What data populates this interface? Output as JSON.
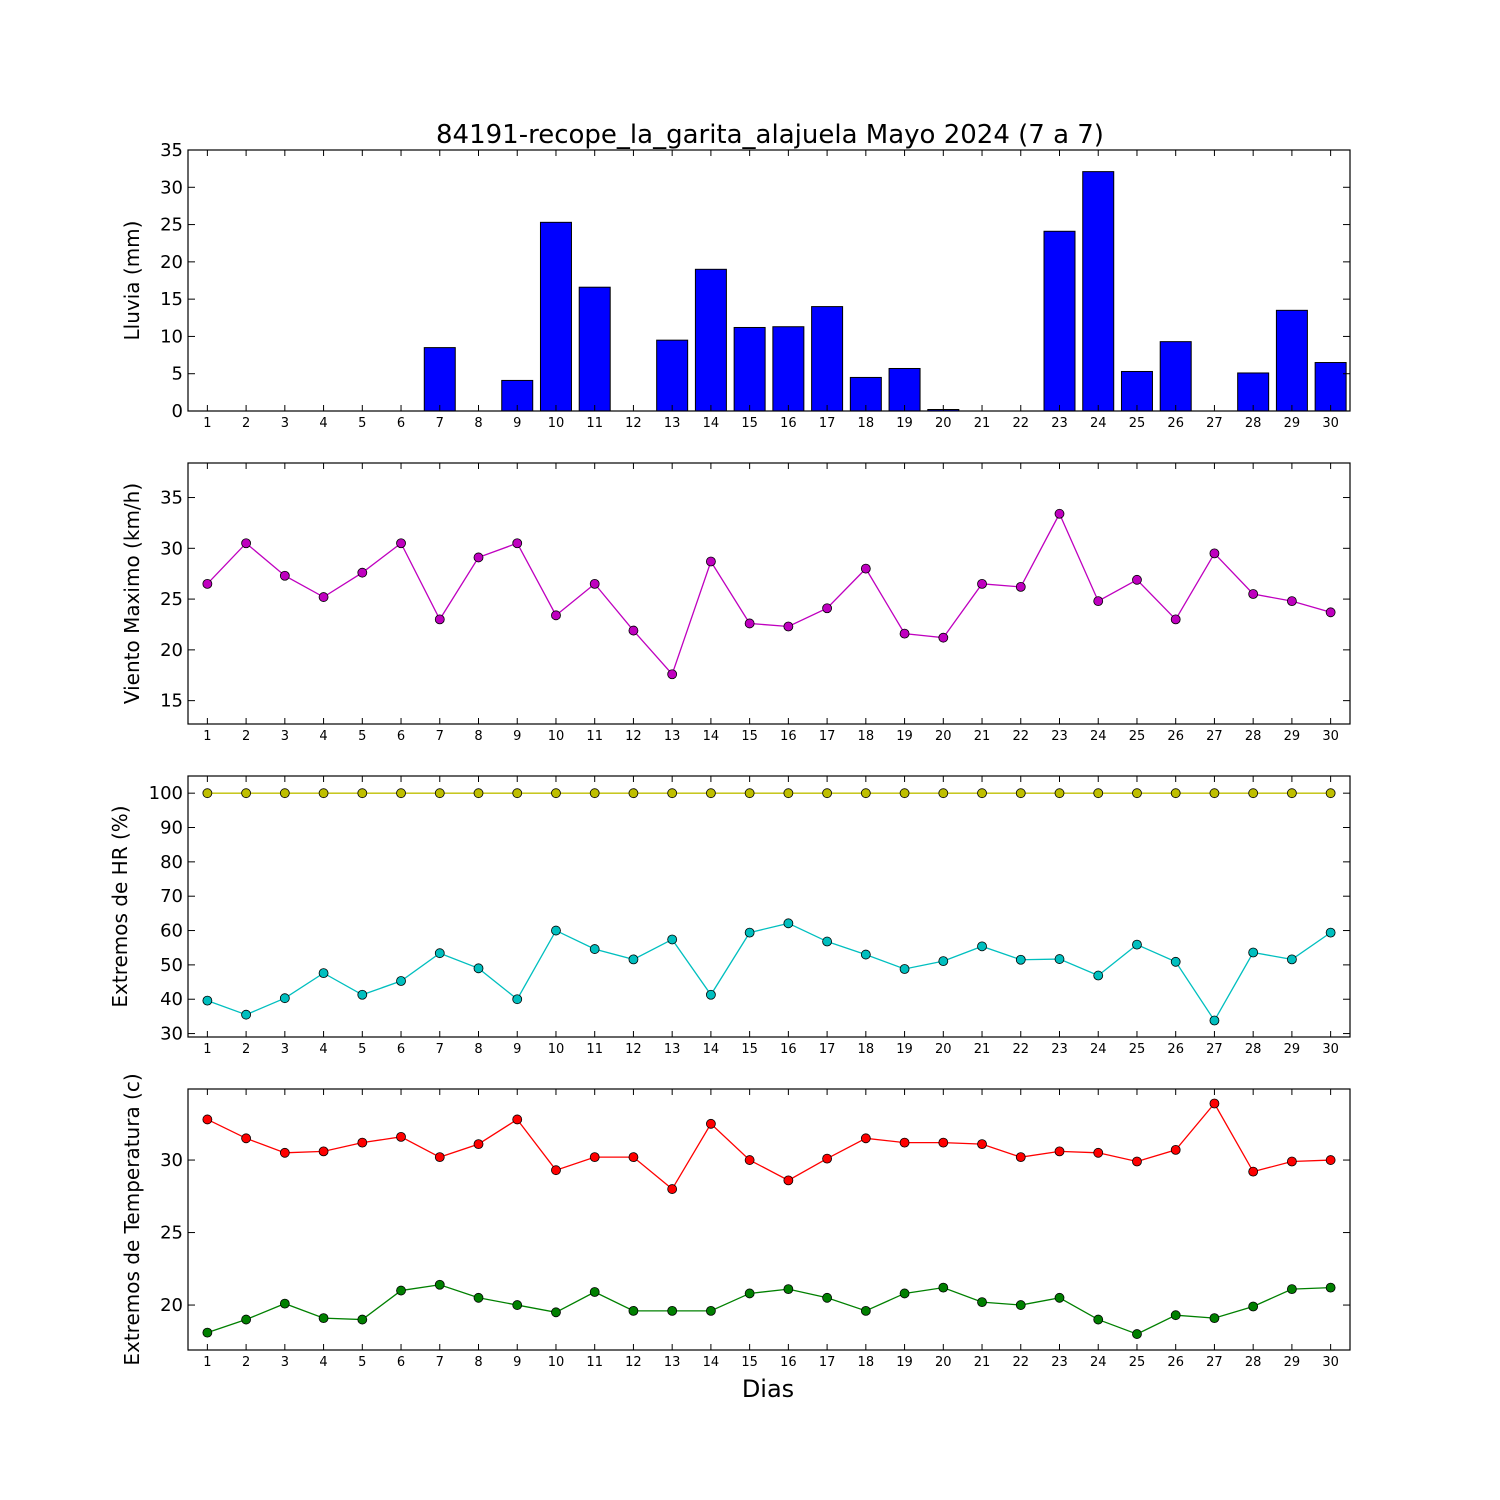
{
  "title": "84191-recope_la_garita_alajuela Mayo 2024  (7 a 7)",
  "xlabel": "Dias",
  "colors": {
    "rain_bar": "#0000ff",
    "wind": "#bf00bf",
    "hr_max": "#bfbf00",
    "hr_min": "#00bfbf",
    "temp_max": "#ff0000",
    "temp_min": "#008000"
  },
  "chart_data": [
    {
      "type": "bar",
      "ylabel": "Lluvia (mm)",
      "x": [
        1,
        2,
        3,
        4,
        5,
        6,
        7,
        8,
        9,
        10,
        11,
        12,
        13,
        14,
        15,
        16,
        17,
        18,
        19,
        20,
        21,
        22,
        23,
        24,
        25,
        26,
        27,
        28,
        29,
        30
      ],
      "xlim": [
        0.5,
        30.5
      ],
      "ylim": [
        0,
        35
      ],
      "yticks": [
        0,
        5,
        10,
        15,
        20,
        25,
        30,
        35
      ],
      "series": [
        {
          "values": [
            0,
            0,
            0,
            0,
            0,
            0,
            8.5,
            0,
            4.1,
            25.3,
            16.6,
            0,
            9.5,
            19.0,
            11.2,
            11.3,
            14.0,
            4.5,
            5.7,
            0.2,
            0,
            0,
            24.1,
            32.1,
            5.3,
            9.3,
            0,
            5.1,
            13.5,
            6.5
          ],
          "color": "#0000ff"
        }
      ]
    },
    {
      "type": "line",
      "ylabel": "Viento Maximo (km/h)",
      "x": [
        1,
        2,
        3,
        4,
        5,
        6,
        7,
        8,
        9,
        10,
        11,
        12,
        13,
        14,
        15,
        16,
        17,
        18,
        19,
        20,
        21,
        22,
        23,
        24,
        25,
        26,
        27,
        28,
        29,
        30
      ],
      "xlim": [
        0.5,
        30.5
      ],
      "ylim": [
        12.7,
        38.4
      ],
      "yticks": [
        15,
        20,
        25,
        30,
        35
      ],
      "series": [
        {
          "values": [
            26.5,
            30.5,
            27.3,
            25.2,
            27.6,
            30.5,
            23.0,
            29.1,
            30.5,
            23.4,
            26.5,
            21.9,
            17.6,
            28.7,
            22.6,
            22.3,
            24.1,
            28.0,
            21.6,
            21.2,
            26.5,
            26.2,
            33.4,
            24.8,
            26.9,
            23.0,
            29.5,
            25.5,
            24.8,
            23.7
          ],
          "color": "#bf00bf"
        }
      ]
    },
    {
      "type": "line",
      "ylabel": "Extremos de HR (%)",
      "x": [
        1,
        2,
        3,
        4,
        5,
        6,
        7,
        8,
        9,
        10,
        11,
        12,
        13,
        14,
        15,
        16,
        17,
        18,
        19,
        20,
        21,
        22,
        23,
        24,
        25,
        26,
        27,
        28,
        29,
        30
      ],
      "xlim": [
        0.5,
        30.5
      ],
      "ylim": [
        29,
        105
      ],
      "yticks": [
        30,
        40,
        50,
        60,
        70,
        80,
        90,
        100
      ],
      "series": [
        {
          "values": [
            100,
            100,
            100,
            100,
            100,
            100,
            100,
            100,
            100,
            100,
            100,
            100,
            100,
            100,
            100,
            100,
            100,
            100,
            100,
            100,
            100,
            100,
            100,
            100,
            100,
            100,
            100,
            100,
            100,
            100
          ],
          "color": "#bfbf00"
        },
        {
          "values": [
            39.6,
            35.5,
            40.3,
            47.6,
            41.3,
            45.3,
            53.4,
            49.0,
            40.0,
            60.0,
            54.6,
            51.6,
            57.4,
            41.3,
            59.4,
            62.1,
            56.8,
            53.0,
            48.8,
            51.1,
            55.4,
            51.5,
            51.7,
            46.9,
            55.9,
            50.9,
            33.8,
            53.6,
            51.6,
            59.4
          ],
          "color": "#00bfbf"
        }
      ]
    },
    {
      "type": "line",
      "ylabel": "Extremos de Temperatura (c)",
      "x": [
        1,
        2,
        3,
        4,
        5,
        6,
        7,
        8,
        9,
        10,
        11,
        12,
        13,
        14,
        15,
        16,
        17,
        18,
        19,
        20,
        21,
        22,
        23,
        24,
        25,
        26,
        27,
        28,
        29,
        30
      ],
      "xlim": [
        0.5,
        30.5
      ],
      "ylim": [
        16.9,
        34.9
      ],
      "yticks": [
        20,
        25,
        30
      ],
      "series": [
        {
          "values": [
            32.8,
            31.5,
            30.5,
            30.6,
            31.2,
            31.6,
            30.2,
            31.1,
            32.8,
            29.3,
            30.2,
            30.2,
            28.0,
            32.5,
            30.0,
            28.6,
            30.1,
            31.5,
            31.2,
            31.2,
            31.1,
            30.2,
            30.6,
            30.5,
            29.9,
            30.7,
            33.9,
            29.2,
            29.9,
            30.0
          ],
          "color": "#ff0000"
        },
        {
          "values": [
            18.1,
            19.0,
            20.1,
            19.1,
            19.0,
            21.0,
            21.4,
            20.5,
            20.0,
            19.5,
            20.9,
            19.6,
            19.6,
            19.6,
            20.8,
            21.1,
            20.5,
            19.6,
            20.8,
            21.2,
            20.2,
            20.0,
            20.5,
            19.0,
            18.0,
            19.3,
            19.1,
            19.9,
            21.1,
            21.2
          ],
          "color": "#008000"
        }
      ]
    }
  ]
}
